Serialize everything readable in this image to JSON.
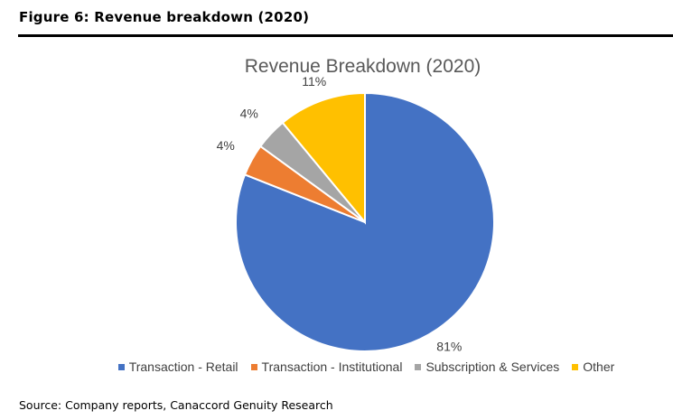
{
  "figure_title": "Figure 6: Revenue breakdown (2020)",
  "source": "Source: Company reports, Canaccord Genuity Research",
  "chart_data": {
    "type": "pie",
    "title": "Revenue Breakdown (2020)",
    "legend_position": "bottom",
    "slices": [
      {
        "name": "Transaction - Retail",
        "value": 81,
        "label": "81%",
        "color": "#4472C4"
      },
      {
        "name": "Transaction - Institutional",
        "value": 4,
        "label": "4%",
        "color": "#ED7D31"
      },
      {
        "name": "Subscription & Services",
        "value": 4,
        "label": "4%",
        "color": "#A5A5A5"
      },
      {
        "name": "Other",
        "value": 11,
        "label": "11%",
        "color": "#FFC000"
      }
    ]
  }
}
